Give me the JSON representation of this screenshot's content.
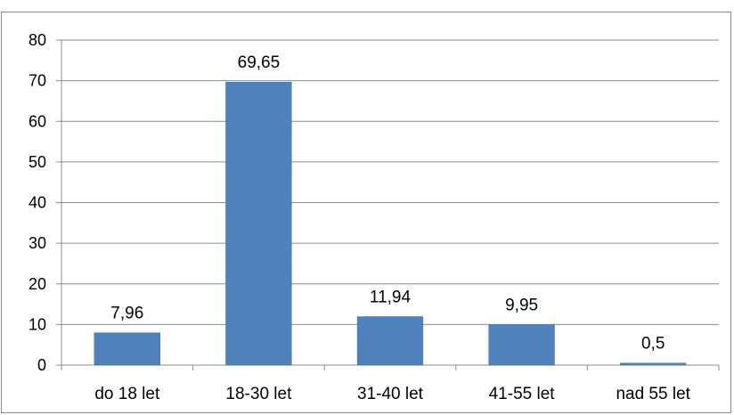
{
  "chart_data": {
    "type": "bar",
    "categories": [
      "do 18 let",
      "18-30 let",
      "31-40 let",
      "41-55 let",
      "nad 55 let"
    ],
    "values": [
      7.96,
      69.65,
      11.94,
      9.95,
      0.5
    ],
    "value_labels": [
      "7,96",
      "69,65",
      "11,94",
      "9,95",
      "0,5"
    ],
    "ylim": [
      0,
      80
    ],
    "yticks": [
      0,
      10,
      20,
      30,
      40,
      50,
      60,
      70,
      80
    ],
    "grid": true,
    "legend": "none",
    "colors": {
      "bar": "#4F81BD",
      "bar_edge": "#3F6FA8",
      "grid": "#8C8C8C",
      "axis": "#8C8C8C",
      "text": "#000000"
    }
  }
}
